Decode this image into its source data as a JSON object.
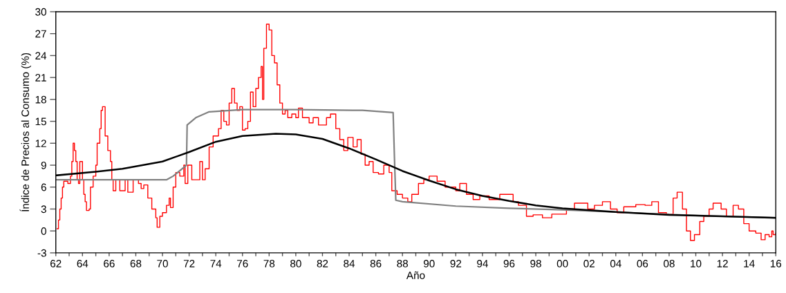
{
  "chart_data": {
    "type": "line",
    "xlabel": "Año",
    "ylabel": "Índice de Precios al Consumo (%)",
    "xlim": [
      1962,
      2016
    ],
    "ylim": [
      -3,
      30
    ],
    "yticks": [
      -3,
      0,
      3,
      6,
      9,
      12,
      15,
      18,
      21,
      24,
      27,
      30
    ],
    "xticks": [
      {
        "value": 1962,
        "label": "62"
      },
      {
        "value": 1963,
        "label": null
      },
      {
        "value": 1964,
        "label": "64"
      },
      {
        "value": 1965,
        "label": null
      },
      {
        "value": 1966,
        "label": "66"
      },
      {
        "value": 1967,
        "label": null
      },
      {
        "value": 1968,
        "label": "68"
      },
      {
        "value": 1969,
        "label": null
      },
      {
        "value": 1970,
        "label": "70"
      },
      {
        "value": 1971,
        "label": null
      },
      {
        "value": 1972,
        "label": "72"
      },
      {
        "value": 1973,
        "label": null
      },
      {
        "value": 1974,
        "label": "74"
      },
      {
        "value": 1975,
        "label": null
      },
      {
        "value": 1976,
        "label": "76"
      },
      {
        "value": 1977,
        "label": null
      },
      {
        "value": 1978,
        "label": "78"
      },
      {
        "value": 1979,
        "label": null
      },
      {
        "value": 1980,
        "label": "80"
      },
      {
        "value": 1981,
        "label": null
      },
      {
        "value": 1982,
        "label": "82"
      },
      {
        "value": 1983,
        "label": null
      },
      {
        "value": 1984,
        "label": "84"
      },
      {
        "value": 1985,
        "label": null
      },
      {
        "value": 1986,
        "label": "86"
      },
      {
        "value": 1987,
        "label": null
      },
      {
        "value": 1988,
        "label": "88"
      },
      {
        "value": 1989,
        "label": null
      },
      {
        "value": 1990,
        "label": "90"
      },
      {
        "value": 1991,
        "label": null
      },
      {
        "value": 1992,
        "label": "92"
      },
      {
        "value": 1993,
        "label": null
      },
      {
        "value": 1994,
        "label": "94"
      },
      {
        "value": 1995,
        "label": null
      },
      {
        "value": 1996,
        "label": "96"
      },
      {
        "value": 1997,
        "label": null
      },
      {
        "value": 1998,
        "label": "98"
      },
      {
        "value": 1999,
        "label": null
      },
      {
        "value": 2000,
        "label": "00"
      },
      {
        "value": 2001,
        "label": null
      },
      {
        "value": 2002,
        "label": "02"
      },
      {
        "value": 2003,
        "label": null
      },
      {
        "value": 2004,
        "label": "04"
      },
      {
        "value": 2005,
        "label": null
      },
      {
        "value": 2006,
        "label": "06"
      },
      {
        "value": 2007,
        "label": null
      },
      {
        "value": 2008,
        "label": "08"
      },
      {
        "value": 2009,
        "label": null
      },
      {
        "value": 2010,
        "label": "10"
      },
      {
        "value": 2011,
        "label": null
      },
      {
        "value": 2012,
        "label": "12"
      },
      {
        "value": 2013,
        "label": null
      },
      {
        "value": 2014,
        "label": "14"
      },
      {
        "value": 2015,
        "label": null
      },
      {
        "value": 2016,
        "label": "16"
      }
    ],
    "series": [
      {
        "type": "step",
        "color": "#ff0000",
        "x": [
          1962.1,
          1962.2,
          1962.3,
          1962.4,
          1962.5,
          1962.6,
          1962.9,
          1963.1,
          1963.2,
          1963.3,
          1963.4,
          1963.5,
          1963.6,
          1963.7,
          1963.8,
          1964.0,
          1964.1,
          1964.2,
          1964.3,
          1964.5,
          1964.6,
          1964.8,
          1965.0,
          1965.1,
          1965.3,
          1965.4,
          1965.5,
          1965.7,
          1965.9,
          1966.1,
          1966.2,
          1966.3,
          1966.5,
          1966.8,
          1967.2,
          1967.4,
          1967.8,
          1968.2,
          1968.4,
          1968.6,
          1968.9,
          1969.2,
          1969.5,
          1969.6,
          1969.8,
          1970.0,
          1970.3,
          1970.5,
          1970.6,
          1970.8,
          1971.0,
          1971.3,
          1971.6,
          1971.7,
          1971.9,
          1972.2,
          1972.8,
          1973.0,
          1973.2,
          1973.5,
          1973.8,
          1974.2,
          1974.4,
          1974.6,
          1974.8,
          1975.0,
          1975.2,
          1975.4,
          1975.6,
          1975.8,
          1976.0,
          1976.2,
          1976.4,
          1976.6,
          1976.8,
          1977.0,
          1977.2,
          1977.4,
          1977.5,
          1977.6,
          1977.8,
          1978.0,
          1978.2,
          1978.4,
          1978.6,
          1978.8,
          1979.0,
          1979.2,
          1979.4,
          1979.7,
          1980.0,
          1980.2,
          1980.5,
          1981.0,
          1981.3,
          1981.7,
          1982.3,
          1982.6,
          1983.0,
          1983.3,
          1983.6,
          1983.9,
          1984.3,
          1984.6,
          1984.9,
          1985.2,
          1985.5,
          1985.8,
          1986.2,
          1986.6,
          1987.0,
          1987.2,
          1987.6,
          1988.0,
          1988.4,
          1988.7,
          1989.2,
          1989.6,
          1990.0,
          1990.6,
          1991.2,
          1992.0,
          1992.3,
          1992.8,
          1993.3,
          1993.8,
          1994.5,
          1995.3,
          1996.3,
          1996.7,
          1997.3,
          1997.8,
          1998.5,
          1999.2,
          2000.3,
          2000.9,
          2001.5,
          2001.9,
          2002.4,
          2003.0,
          2003.6,
          2004.1,
          2004.6,
          2005.5,
          2006.2,
          2006.7,
          2007.2,
          2007.8,
          2008.3,
          2008.6,
          2009.0,
          2009.3,
          2009.6,
          2009.9,
          2010.3,
          2010.6,
          2011.0,
          2011.3,
          2011.9,
          2012.3,
          2012.8,
          2013.2,
          2013.6,
          2014.0,
          2014.5,
          2014.9,
          2015.2,
          2015.5,
          2015.7,
          2015.8,
          2016.0
        ],
        "values": [
          0.3,
          1.5,
          3,
          4.5,
          6,
          6.8,
          6.5,
          7.5,
          9.5,
          12,
          11,
          9.5,
          7,
          6.5,
          9.5,
          7,
          5,
          4,
          2.8,
          3,
          6,
          7.5,
          9,
          12,
          14,
          16.5,
          17,
          13,
          11,
          9.5,
          7,
          5.5,
          7,
          5.5,
          7,
          5.3,
          7,
          6.5,
          5.8,
          6.3,
          4.5,
          3,
          1.8,
          0.5,
          2,
          2.5,
          3.5,
          4.5,
          3.2,
          6,
          8,
          7.5,
          9,
          6.5,
          9,
          7,
          9.5,
          7,
          8.5,
          11.5,
          13,
          14,
          16.5,
          15,
          14.5,
          17.5,
          19.5,
          17.5,
          16.5,
          17,
          13.8,
          14,
          15,
          19,
          17,
          19.5,
          21,
          22.5,
          18,
          25,
          28.3,
          27.5,
          24,
          23,
          20,
          17.5,
          16,
          16.5,
          15.5,
          16,
          15.5,
          16.8,
          15.5,
          14.8,
          15.5,
          14.5,
          15.5,
          16,
          14,
          12.5,
          11,
          12.8,
          11.5,
          12.5,
          10.5,
          9,
          9.5,
          8,
          7.8,
          9,
          8,
          5.5,
          5,
          4.5,
          4,
          5,
          6.5,
          7,
          7.5,
          6.8,
          6,
          5.5,
          6.5,
          5,
          4.3,
          4.8,
          4.3,
          5,
          4,
          3.5,
          2,
          2.2,
          1.8,
          2.3,
          3,
          3.8,
          3.8,
          3,
          3.5,
          4,
          3,
          2.5,
          3.3,
          3.6,
          3.5,
          4,
          2.5,
          2.3,
          4.5,
          5.3,
          3,
          0,
          -1.3,
          -0.5,
          1.3,
          2,
          3,
          3.8,
          3,
          2,
          3.5,
          3,
          1,
          0,
          -0.3,
          -1.2,
          -0.5,
          -0.8,
          0,
          -0.5,
          -0.3
        ]
      },
      {
        "color": "#808080",
        "x": [
          1962,
          1970.3,
          1970.8,
          1971.8,
          1971.85,
          1972.5,
          1973.5,
          1976,
          1980,
          1985,
          1987.3,
          1987.4,
          1987.5,
          1988,
          1992,
          1996,
          2000,
          2005,
          2010,
          2016
        ],
        "values": [
          7.0,
          7.0,
          7.5,
          9,
          14.5,
          15.5,
          16.3,
          16.6,
          16.6,
          16.5,
          16.2,
          10,
          4.2,
          4.0,
          3.4,
          3.1,
          2.9,
          2.5,
          2.1,
          1.8
        ]
      },
      {
        "color": "#000000",
        "x": [
          1962,
          1965,
          1967,
          1970,
          1972,
          1974,
          1976,
          1978.5,
          1980,
          1982,
          1984,
          1986,
          1988,
          1990,
          1992,
          1994,
          1996,
          1998,
          2000,
          2004,
          2008,
          2012,
          2016
        ],
        "values": [
          7.6,
          8.1,
          8.5,
          9.5,
          10.8,
          12.2,
          13.0,
          13.3,
          13.2,
          12.6,
          11.3,
          9.8,
          8.2,
          6.9,
          5.7,
          4.8,
          4.1,
          3.5,
          3.1,
          2.6,
          2.2,
          2.0,
          1.8
        ]
      }
    ]
  }
}
